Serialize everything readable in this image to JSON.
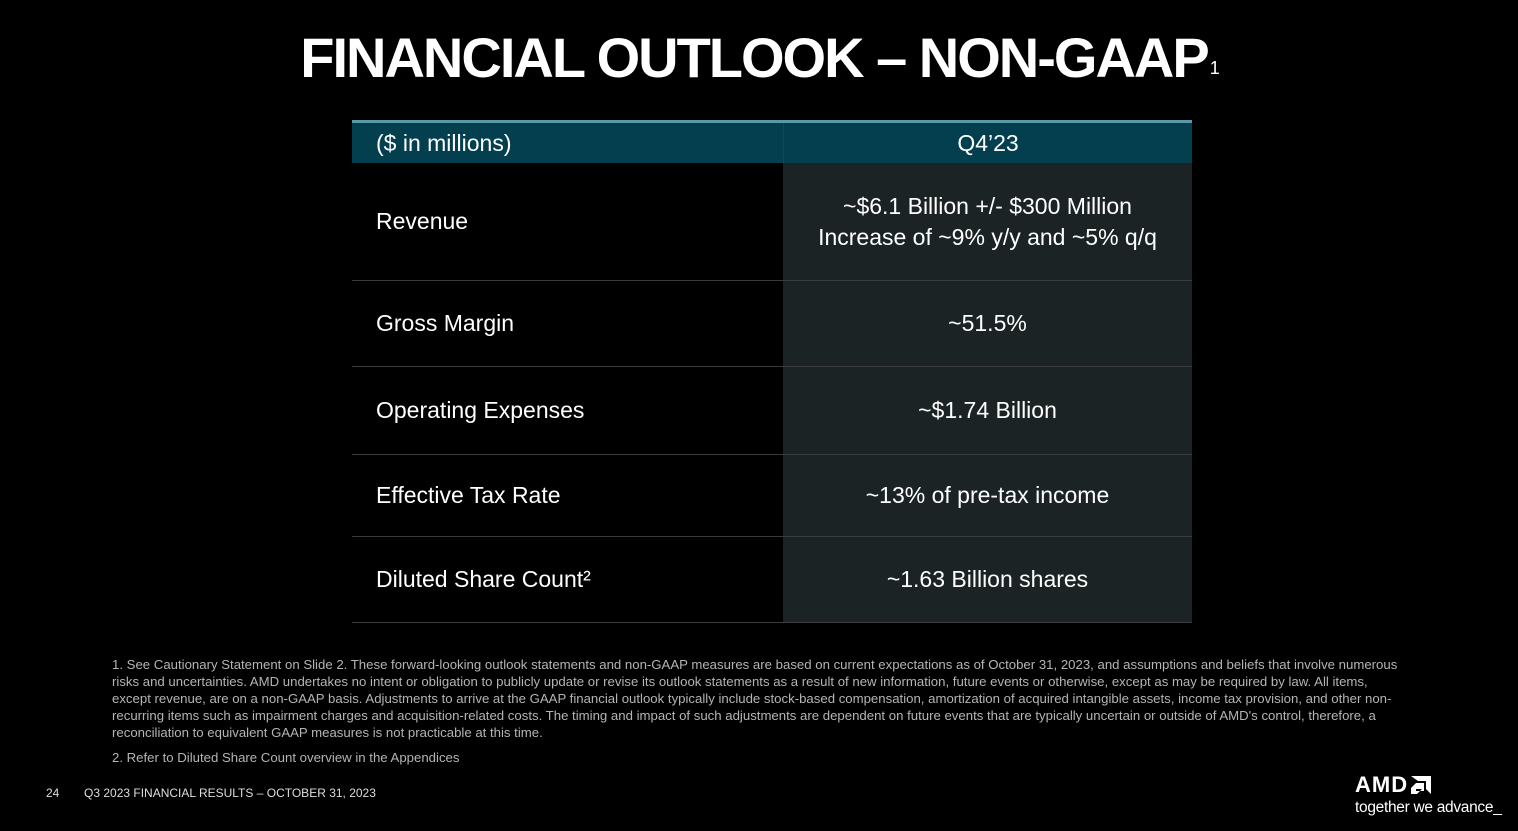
{
  "title": "FINANCIAL OUTLOOK – NON-GAAP",
  "title_footnote": "1",
  "table": {
    "header": [
      "($ in millions)",
      "Q4’23"
    ],
    "rows": [
      {
        "label": "Revenue",
        "value": [
          "~$6.1 Billion +/- $300 Million",
          "Increase of ~9% y/y and ~5% q/q"
        ]
      },
      {
        "label": "Gross Margin",
        "value": [
          "~51.5%"
        ]
      },
      {
        "label": "Operating Expenses",
        "value": [
          "~$1.74 Billion"
        ]
      },
      {
        "label": "Effective Tax Rate",
        "value": [
          "~13% of pre-tax income"
        ]
      },
      {
        "label": "Diluted Share Count²",
        "value": [
          "~1.63 Billion shares"
        ]
      }
    ]
  },
  "footnotes": [
    "1.  See Cautionary Statement on Slide 2. These forward-looking outlook statements and non-GAAP measures are based on current expectations as of October 31, 2023, and assumptions and beliefs that involve numerous risks and uncertainties. AMD undertakes no intent or obligation to publicly update or revise its outlook statements as a result of new information, future events or otherwise, except as may be required by law. All items, except revenue, are on a non-GAAP basis. Adjustments to arrive at the GAAP financial outlook typically include stock-based compensation, amortization of acquired intangible assets, income tax provision, and other non-recurring items such as impairment charges and acquisition-related costs. The timing and impact of such adjustments are dependent on future events that are typically uncertain or outside of AMD's control, therefore, a reconciliation to equivalent GAAP measures is not practicable at this time.",
    "2.  Refer to Diluted Share Count overview in the Appendices"
  ],
  "footer": {
    "page_number": "24",
    "text": "Q3 2023 FINANCIAL RESULTS – OCTOBER 31, 2023"
  },
  "logo": {
    "brand": "AMD",
    "tagline": "together we advance_"
  },
  "colors": {
    "header_bg": "#033f4e",
    "header_border": "#5a9aa8",
    "value_bg": "#1b2324"
  }
}
